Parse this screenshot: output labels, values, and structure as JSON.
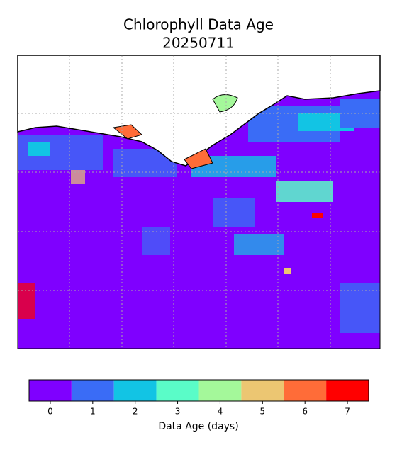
{
  "map": {
    "title_lines": [
      "Chlorophyll Data Age",
      "20250711"
    ]
  },
  "colorbar": {
    "label": "Data Age (days)",
    "ticks": [
      0,
      1,
      2,
      3,
      4,
      5,
      6,
      7
    ],
    "clim": [
      -0.5,
      7.5
    ],
    "colors": [
      "#7f00ff",
      "#3a6cf6",
      "#12c4e4",
      "#5afcc8",
      "#a4f89a",
      "#ecc672",
      "#ff6c38",
      "#ff0000"
    ]
  }
}
